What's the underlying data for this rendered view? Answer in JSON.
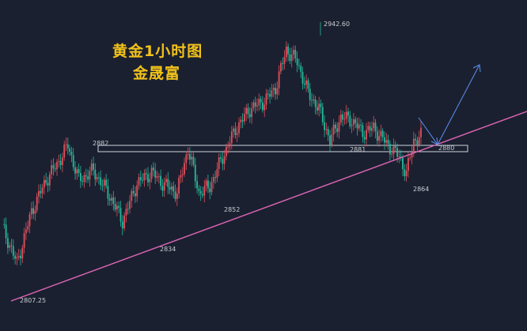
{
  "chart_data": {
    "type": "candlestick",
    "title": "黄金1小时图",
    "subtitle": "金晟富",
    "colors": {
      "up": "#e0505c",
      "down": "#26b89a",
      "background": "#1b2030",
      "trendline": "#e066b8",
      "zone": "#cfd3dc",
      "arrow": "#5b8ff0"
    },
    "annotations": [
      {
        "label": "2942.60",
        "price": 2942.6,
        "type": "high"
      },
      {
        "label": "2882",
        "price": 2882,
        "type": "level"
      },
      {
        "label": "2881",
        "price": 2881,
        "type": "low"
      },
      {
        "label": "2880",
        "price": 2880,
        "type": "level"
      },
      {
        "label": "2864",
        "price": 2864,
        "type": "low"
      },
      {
        "label": "2852",
        "price": 2852,
        "type": "low"
      },
      {
        "label": "2834",
        "price": 2834,
        "type": "low"
      },
      {
        "label": "2807.25",
        "price": 2807.25,
        "type": "low"
      }
    ],
    "support_zone": {
      "from": 2878,
      "to": 2882
    },
    "grid": false,
    "legend": "none"
  }
}
